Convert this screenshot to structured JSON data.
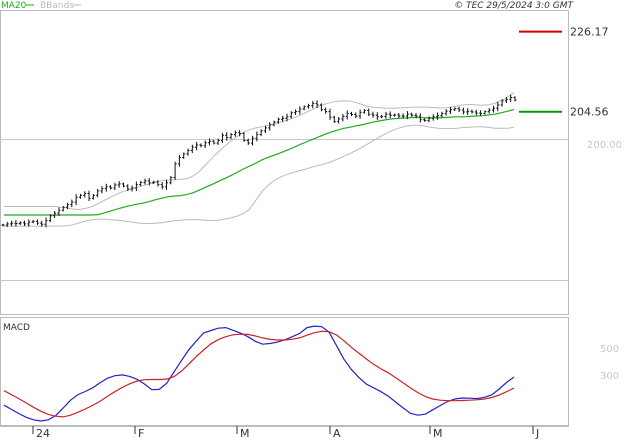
{
  "chart_data": [
    {
      "type": "candlestick",
      "panel": "price",
      "legend": {
        "ma20": "MA20",
        "bbands": "BBands",
        "copyright": "© TEC 29/5/2024 3:0 GMT"
      },
      "y_tick_labels": [
        "200.00"
      ],
      "ylim": [
        150,
        232
      ],
      "reference_line": 200,
      "levels": [
        {
          "name": "resistance",
          "value": 226.17,
          "label": "226.17",
          "color": "#cc0000"
        },
        {
          "name": "support",
          "value": 204.56,
          "label": "204.56",
          "color": "#009900"
        }
      ],
      "series": [
        {
          "name": "price",
          "values": [
            174,
            174.3,
            174.5,
            174.4,
            174.6,
            174.3,
            174.8,
            175,
            174.5,
            174.2,
            175.2,
            176.5,
            177.2,
            178,
            178.8,
            179.5,
            180.2,
            181.5,
            182,
            182.5,
            181.2,
            182,
            183.2,
            183.8,
            184.3,
            184,
            184.8,
            185.1,
            184.5,
            183.7,
            184,
            184.9,
            185.5,
            185.9,
            185.4,
            185.6,
            184.9,
            184.3,
            185.4,
            186.8,
            190.5,
            192.2,
            193.2,
            194.1,
            195,
            195.6,
            195.4,
            196.2,
            196.6,
            196.1,
            196.8,
            198.2,
            197.6,
            198.4,
            198.9,
            198.7,
            196.8,
            196.1,
            197.4,
            198.4,
            199.4,
            200.2,
            201,
            201.8,
            202.5,
            202.8,
            203.2,
            204.3,
            204.6,
            205.3,
            205.9,
            206.2,
            206.8,
            206.4,
            205.1,
            204.6,
            203.1,
            201.9,
            202.6,
            203.3,
            204.1,
            203.8,
            203.4,
            204.4,
            204.9,
            203.9,
            203.6,
            203.2,
            203.3,
            203.9,
            203.6,
            203.7,
            203.4,
            203.4,
            203.9,
            203.6,
            203.4,
            202.4,
            202.2,
            202.8,
            203.2,
            203.5,
            204.1,
            204.7,
            205.1,
            205.4,
            205,
            204.5,
            204.7,
            204.5,
            204.2,
            204.1,
            204.6,
            205,
            205.5,
            206.4,
            207.5,
            207.9,
            208.4,
            207.7
          ]
        },
        {
          "name": "MA20",
          "color": "#22aa22",
          "values": [
            176.7,
            176.7,
            176.7,
            176.7,
            176.7,
            176.7,
            176.7,
            176.7,
            176.7,
            176.7,
            176.7,
            176.7,
            176.7,
            176.7,
            176.7,
            176.8,
            177.3,
            177.8,
            178.3,
            178.8,
            179.2,
            179.6,
            179.9,
            180.3,
            180.8,
            181.2,
            181.6,
            181.8,
            181.9,
            182.2,
            182.7,
            183.4,
            184.2,
            184.9,
            185.7,
            186.5,
            187.3,
            188.2,
            189.1,
            189.9,
            190.7,
            191.6,
            192.3,
            192.9,
            193.5,
            194.2,
            194.9,
            195.7,
            196.4,
            197.1,
            197.8,
            198.5,
            199.1,
            199.6,
            200.1,
            200.4,
            200.8,
            201.1,
            201.5,
            201.9,
            202.2,
            202.5,
            202.7,
            202.8,
            202.9,
            203,
            203,
            202.9,
            202.9,
            202.9,
            203,
            203.1,
            203.2,
            203.2,
            203.3,
            203.4,
            203.5,
            203.7,
            203.9,
            204.3,
            204.7,
            205.2
          ]
        },
        {
          "name": "BB-upper",
          "color": "#bbbbbb",
          "values": [
            179,
            179,
            179,
            179,
            179,
            179,
            179,
            179,
            179,
            178.8,
            178.6,
            178.3,
            178.2,
            178.5,
            179,
            179.8,
            180.7,
            181.6,
            182.4,
            183.1,
            183.6,
            184.1,
            184.6,
            185,
            185.5,
            185.9,
            186.1,
            186.2,
            186.3,
            186.5,
            187.2,
            188.4,
            190.2,
            192,
            193.7,
            195.2,
            196.6,
            197.8,
            198.9,
            199.7,
            200.2,
            200.5,
            200.9,
            201.3,
            201.8,
            202.3,
            202.9,
            203.6,
            204.4,
            205.2,
            206,
            206.6,
            207.1,
            207.4,
            207.5,
            207.4,
            207,
            206.4,
            205.9,
            205.7,
            205.6,
            205.5,
            205.5,
            205.6,
            205.7,
            205.8,
            205.8,
            205.8,
            205.7,
            205.6,
            205.6,
            205.8,
            206.1,
            206.4,
            206.5,
            206.4,
            206.3,
            206.4,
            206.9,
            207.6,
            208.6,
            209.7
          ]
        },
        {
          "name": "BB-lower",
          "color": "#bbbbbb",
          "values": [
            173.7,
            173.7,
            173.7,
            173.7,
            173.7,
            173.7,
            173.7,
            173.7,
            173.7,
            173.7,
            173.8,
            174.1,
            174.6,
            175.1,
            175.4,
            175.6,
            175.6,
            175.4,
            175.3,
            175.1,
            174.9,
            174.6,
            174.4,
            174.4,
            174.5,
            174.6,
            174.9,
            175.1,
            175.3,
            175.4,
            175.4,
            175.4,
            175.3,
            175.2,
            175.3,
            175.6,
            175.9,
            176.4,
            177.1,
            178.3,
            180.7,
            183.1,
            184.8,
            186.1,
            187,
            187.7,
            188.2,
            188.7,
            189.1,
            189.7,
            190.1,
            190.5,
            191.1,
            191.8,
            192.6,
            193.3,
            194.2,
            195.1,
            196.1,
            197.1,
            198.1,
            199,
            199.7,
            200.3,
            200.7,
            200.9,
            200.9,
            200.6,
            200.3,
            200.1,
            200,
            200,
            200.1,
            200.3,
            200.4,
            200.5,
            200.5,
            200.3,
            200.1,
            200.1,
            200.1,
            200.4
          ]
        }
      ]
    },
    {
      "type": "line",
      "panel": "macd",
      "title": "MACD",
      "y_tick_labels": [
        "500",
        "300"
      ],
      "x_tick_labels": [
        "24",
        "F",
        "M",
        "A",
        "M",
        "J"
      ],
      "ylim": [
        100,
        620
      ],
      "series": [
        {
          "name": "MACD",
          "color": "#2222cc",
          "values": [
            200,
            180,
            160,
            142,
            130,
            124,
            130,
            150,
            186,
            224,
            251,
            266,
            284,
            308,
            330,
            342,
            346,
            339,
            325,
            302,
            275,
            276,
            305,
            360,
            415,
            467,
            509,
            548,
            560,
            571,
            574,
            561,
            548,
            530,
            508,
            494,
            497,
            504,
            515,
            530,
            546,
            574,
            581,
            578,
            551,
            486,
            421,
            372,
            334,
            302,
            284,
            265,
            244,
            215,
            187,
            161,
            152,
            157,
            178,
            198,
            218,
            230,
            235,
            234,
            232,
            238,
            250,
            278,
            310,
            336
          ]
        },
        {
          "name": "Signal",
          "color": "#cc2222",
          "values": [
            270,
            251,
            232,
            211,
            190,
            171,
            156,
            147,
            144,
            152,
            166,
            182,
            199,
            219,
            243,
            265,
            286,
            303,
            316,
            323,
            324,
            324,
            326,
            338,
            364,
            398,
            434,
            466,
            496,
            516,
            530,
            539,
            542,
            541,
            534,
            524,
            517,
            514,
            514,
            518,
            524,
            537,
            549,
            556,
            554,
            538,
            510,
            479,
            451,
            423,
            397,
            375,
            356,
            332,
            308,
            283,
            261,
            242,
            230,
            224,
            222,
            222,
            223,
            224,
            226,
            230,
            237,
            249,
            265,
            283
          ]
        }
      ]
    }
  ]
}
